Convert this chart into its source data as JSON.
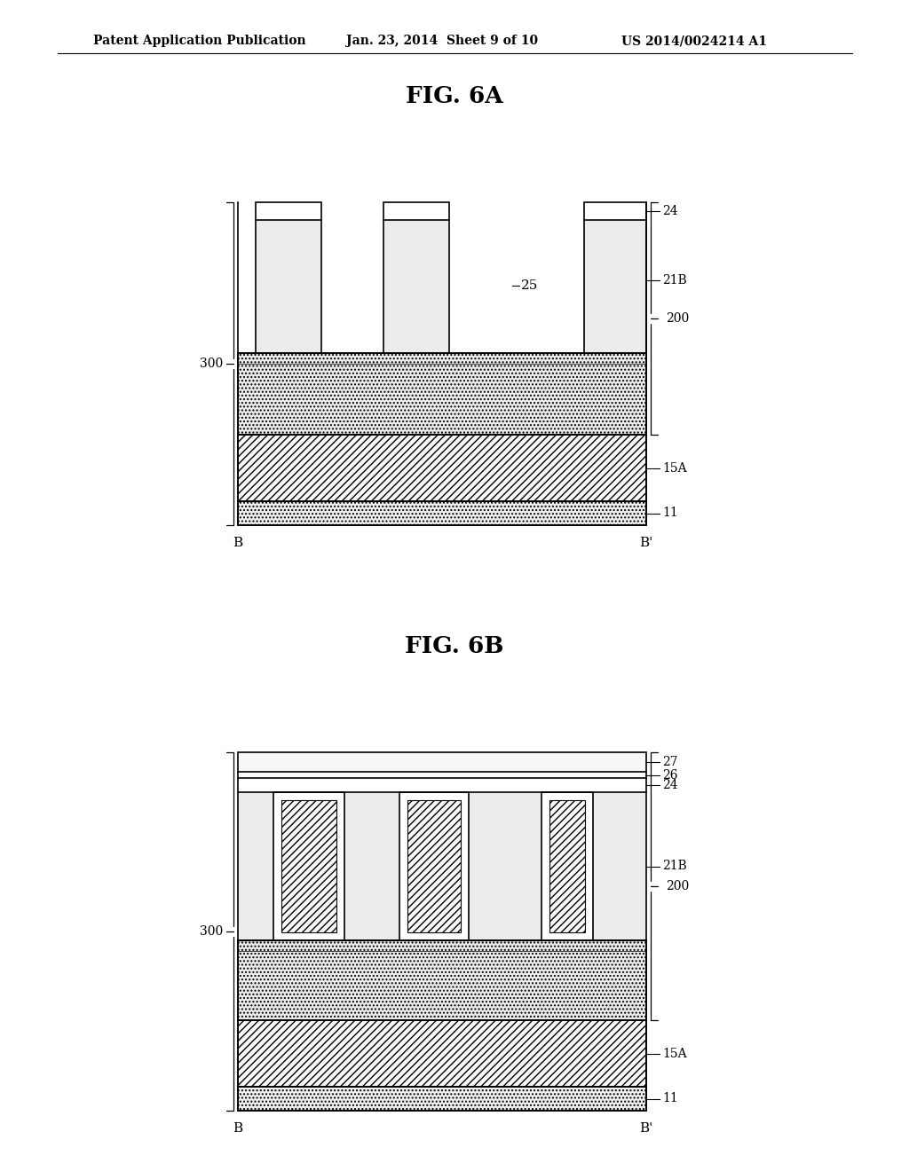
{
  "bg_color": "#ffffff",
  "header_text": "Patent Application Publication",
  "header_date": "Jan. 23, 2014  Sheet 9 of 10",
  "header_patent": "US 2014/0024214 A1",
  "fig6a_title": "FIG. 6A",
  "fig6b_title": "FIG. 6B",
  "line_color": "#000000"
}
